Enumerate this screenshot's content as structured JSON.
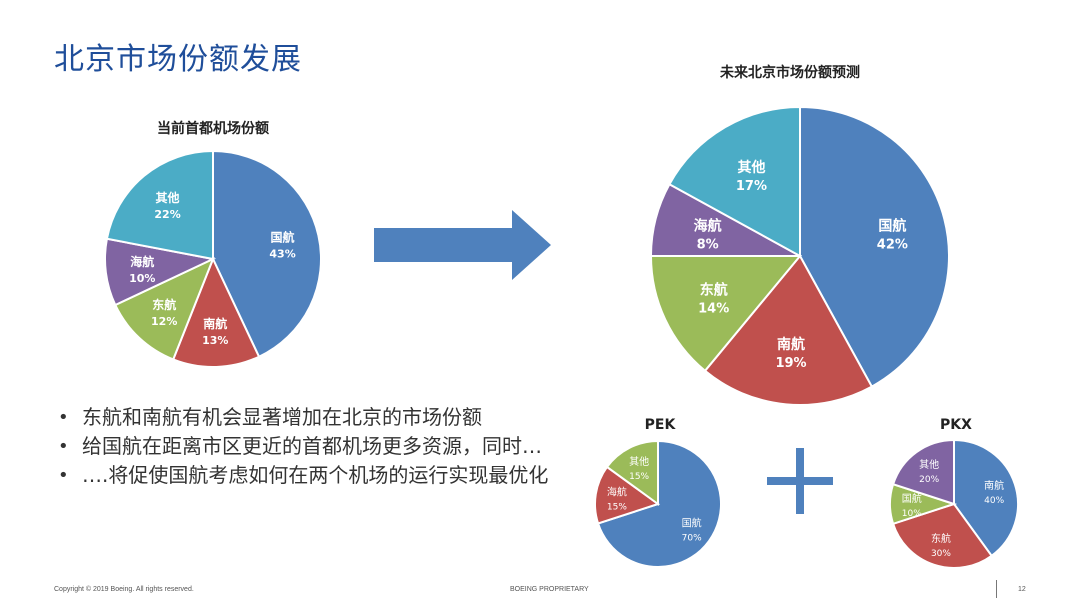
{
  "page_title": "北京市场份额发展",
  "bullets": [
    "东航和南航有机会显著增加在北京的市场份额",
    "给国航在距离市区更近的首都机场更多资源，同时…",
    "….将促使国航考虑如何在两个机场的运行实现最优化"
  ],
  "footer": {
    "copyright": "Copyright © 2019 Boeing. All rights reserved.",
    "proprietary": "BOEING PROPRIETARY",
    "page_number": "12"
  },
  "colors": {
    "blue": "#4f81bd",
    "red": "#c0504d",
    "green": "#9bbb59",
    "purple": "#8064a2",
    "teal": "#4bacc6",
    "title": "#1f4e9a"
  },
  "chart_data": [
    {
      "id": "current",
      "type": "pie",
      "title": "当前首都机场份额",
      "slices": [
        {
          "label": "国航",
          "value": 43,
          "value_label": "43%",
          "color": "#4f81bd"
        },
        {
          "label": "南航",
          "value": 13,
          "value_label": "13%",
          "color": "#c0504d"
        },
        {
          "label": "东航",
          "value": 12,
          "value_label": "12%",
          "color": "#9bbb59"
        },
        {
          "label": "海航",
          "value": 10,
          "value_label": "10%",
          "color": "#8064a2"
        },
        {
          "label": "其他",
          "value": 22,
          "value_label": "22%",
          "color": "#4bacc6"
        }
      ]
    },
    {
      "id": "future",
      "type": "pie",
      "title": "未来北京市场份额预测",
      "slices": [
        {
          "label": "国航",
          "value": 42,
          "value_label": "42%",
          "color": "#4f81bd"
        },
        {
          "label": "南航",
          "value": 19,
          "value_label": "19%",
          "color": "#c0504d"
        },
        {
          "label": "东航",
          "value": 14,
          "value_label": "14%",
          "color": "#9bbb59"
        },
        {
          "label": "海航",
          "value": 8,
          "value_label": "8%",
          "color": "#8064a2"
        },
        {
          "label": "其他",
          "value": 17,
          "value_label": "17%",
          "color": "#4bacc6"
        }
      ]
    },
    {
      "id": "pek",
      "type": "pie",
      "title": "PEK",
      "slices": [
        {
          "label": "国航",
          "value": 70,
          "value_label": "70%",
          "color": "#4f81bd"
        },
        {
          "label": "海航",
          "value": 15,
          "value_label": "15%",
          "color": "#c0504d"
        },
        {
          "label": "其他",
          "value": 15,
          "value_label": "15%",
          "color": "#9bbb59"
        }
      ]
    },
    {
      "id": "pkx",
      "type": "pie",
      "title": "PKX",
      "slices": [
        {
          "label": "南航",
          "value": 40,
          "value_label": "40%",
          "color": "#4f81bd"
        },
        {
          "label": "东航",
          "value": 30,
          "value_label": "30%",
          "color": "#c0504d"
        },
        {
          "label": "国航",
          "value": 10,
          "value_label": "10%",
          "color": "#9bbb59"
        },
        {
          "label": "其他",
          "value": 20,
          "value_label": "20%",
          "color": "#8064a2"
        }
      ]
    }
  ]
}
